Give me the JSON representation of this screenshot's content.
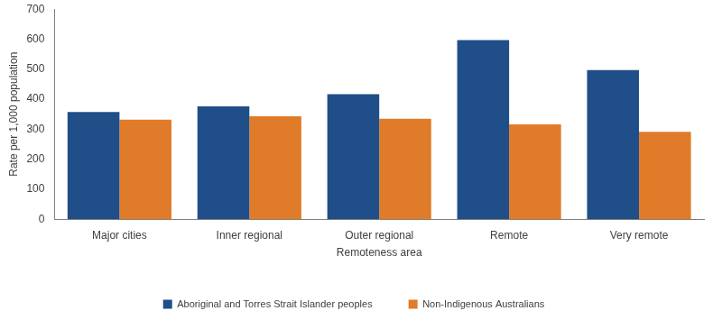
{
  "chart_data": {
    "type": "bar",
    "categories": [
      "Major cities",
      "Inner regional",
      "Outer regional",
      "Remote",
      "Very remote"
    ],
    "series": [
      {
        "name": "Aboriginal and Torres Strait Islander peoples",
        "color": "#1f4e88",
        "values": [
          357,
          376,
          417,
          597,
          497
        ]
      },
      {
        "name": "Non-Indigenous Australians",
        "color": "#e07b29",
        "values": [
          332,
          343,
          335,
          316,
          291
        ]
      }
    ],
    "xlabel": "Remoteness area",
    "ylabel": "Rate per 1,000 population",
    "ylim": [
      0,
      700
    ],
    "yticks": [
      0,
      100,
      200,
      300,
      400,
      500,
      600,
      700
    ],
    "grid": false,
    "legend": "bottom"
  }
}
